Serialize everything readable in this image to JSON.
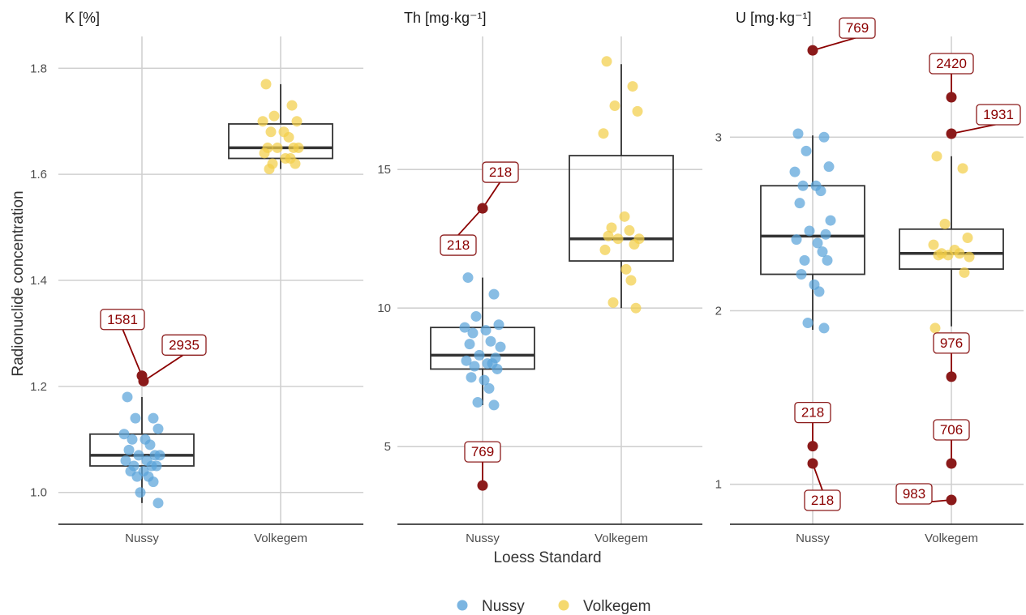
{
  "chart_data": {
    "type": "box",
    "xlabel": "Loess Standard",
    "ylabel": "Radionuclide concentration",
    "categories": [
      "Nussy",
      "Volkegem"
    ],
    "legend": {
      "position": "bottom",
      "entries": [
        {
          "name": "Nussy",
          "color": "#5aa3d9"
        },
        {
          "name": "Volkegem",
          "color": "#f2cf4a"
        }
      ]
    },
    "outlier_color": "#8b1a1a",
    "panels": [
      {
        "title": "K [%]",
        "ylim": [
          0.94,
          1.86
        ],
        "yticks": [
          1.0,
          1.2,
          1.4,
          1.6,
          1.8
        ],
        "ytick_labels": [
          "1.0",
          "1.2",
          "1.4",
          "1.6",
          "1.8"
        ],
        "boxes": [
          {
            "category": "Nussy",
            "q1": 1.05,
            "median": 1.07,
            "q3": 1.11,
            "whisker_low": 0.98,
            "whisker_high": 1.18
          },
          {
            "category": "Volkegem",
            "q1": 1.63,
            "median": 1.65,
            "q3": 1.695,
            "whisker_low": 1.61,
            "whisker_high": 1.77
          }
        ],
        "points": [
          {
            "category": "Nussy",
            "values": [
              1.18,
              1.14,
              1.14,
              1.12,
              1.11,
              1.1,
              1.1,
              1.09,
              1.08,
              1.07,
              1.07,
              1.07,
              1.06,
              1.06,
              1.05,
              1.05,
              1.05,
              1.04,
              1.04,
              1.03,
              1.03,
              1.02,
              1.0,
              0.98
            ]
          },
          {
            "category": "Volkegem",
            "values": [
              1.77,
              1.73,
              1.71,
              1.7,
              1.7,
              1.68,
              1.68,
              1.67,
              1.65,
              1.65,
              1.65,
              1.65,
              1.64,
              1.63,
              1.63,
              1.62,
              1.62,
              1.61
            ]
          }
        ],
        "outliers": [
          {
            "category": "Nussy",
            "value": 1.22,
            "label": "1581"
          },
          {
            "category": "Nussy",
            "value": 1.21,
            "label": "2935"
          }
        ]
      },
      {
        "title": "Th [mg·kg⁻¹]",
        "ylim": [
          2.2,
          19.8
        ],
        "yticks": [
          5,
          10,
          15
        ],
        "ytick_labels": [
          "5",
          "10",
          "15"
        ],
        "boxes": [
          {
            "category": "Nussy",
            "q1": 7.8,
            "median": 8.3,
            "q3": 9.3,
            "whisker_low": 6.5,
            "whisker_high": 11.1
          },
          {
            "category": "Volkegem",
            "q1": 11.7,
            "median": 12.5,
            "q3": 15.5,
            "whisker_low": 10.0,
            "whisker_high": 18.8
          }
        ],
        "points": [
          {
            "category": "Nussy",
            "values": [
              11.1,
              10.5,
              9.7,
              9.4,
              9.3,
              9.2,
              9.1,
              8.8,
              8.7,
              8.6,
              8.3,
              8.2,
              8.1,
              8.0,
              8.0,
              7.9,
              7.8,
              7.5,
              7.4,
              7.1,
              6.6,
              6.5
            ]
          },
          {
            "category": "Volkegem",
            "values": [
              18.9,
              18.0,
              17.3,
              17.1,
              16.3,
              13.3,
              12.9,
              12.8,
              12.6,
              12.5,
              12.5,
              12.3,
              12.1,
              11.4,
              11.0,
              10.2,
              10.0
            ]
          }
        ],
        "outliers": [
          {
            "category": "Nussy",
            "value": 13.6,
            "label": "218"
          },
          {
            "category": "Nussy",
            "value": 13.6,
            "label": "218"
          },
          {
            "category": "Nussy",
            "value": 3.6,
            "label": "769"
          }
        ]
      },
      {
        "title": "U [mg·kg⁻¹]",
        "ylim": [
          0.77,
          3.58
        ],
        "yticks": [
          1,
          2,
          3
        ],
        "ytick_labels": [
          "1",
          "2",
          "3"
        ],
        "boxes": [
          {
            "category": "Nussy",
            "q1": 2.21,
            "median": 2.43,
            "q3": 2.72,
            "whisker_low": 1.89,
            "whisker_high": 3.01
          },
          {
            "category": "Volkegem",
            "q1": 2.24,
            "median": 2.33,
            "q3": 2.47,
            "whisker_low": 1.91,
            "whisker_high": 2.89
          }
        ],
        "points": [
          {
            "category": "Nussy",
            "values": [
              3.02,
              3.0,
              2.92,
              2.83,
              2.8,
              2.72,
              2.72,
              2.69,
              2.62,
              2.52,
              2.46,
              2.44,
              2.41,
              2.39,
              2.34,
              2.29,
              2.29,
              2.21,
              2.15,
              2.11,
              1.93,
              1.9
            ]
          },
          {
            "category": "Volkegem",
            "values": [
              2.89,
              2.82,
              2.5,
              2.42,
              2.38,
              2.35,
              2.33,
              2.33,
              2.32,
              2.31,
              2.32,
              2.22,
              1.9
            ]
          }
        ],
        "outliers": [
          {
            "category": "Nussy",
            "value": 3.5,
            "label": "769"
          },
          {
            "category": "Nussy",
            "value": 1.22,
            "label": "218"
          },
          {
            "category": "Nussy",
            "value": 1.12,
            "label": "218"
          },
          {
            "category": "Volkegem",
            "value": 3.23,
            "label": "2420"
          },
          {
            "category": "Volkegem",
            "value": 3.02,
            "label": "1931"
          },
          {
            "category": "Volkegem",
            "value": 1.62,
            "label": "976"
          },
          {
            "category": "Volkegem",
            "value": 1.12,
            "label": "706"
          },
          {
            "category": "Volkegem",
            "value": 0.91,
            "label": "983"
          }
        ]
      }
    ]
  }
}
